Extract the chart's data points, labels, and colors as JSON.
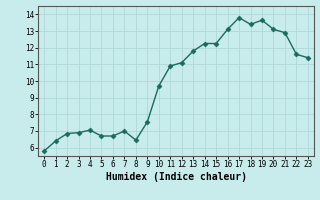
{
  "x": [
    0,
    1,
    2,
    3,
    4,
    5,
    6,
    7,
    8,
    9,
    10,
    11,
    12,
    13,
    14,
    15,
    16,
    17,
    18,
    19,
    20,
    21,
    22,
    23
  ],
  "y": [
    5.8,
    6.4,
    6.85,
    6.9,
    7.05,
    6.7,
    6.7,
    7.0,
    6.45,
    7.55,
    9.7,
    10.9,
    11.1,
    11.8,
    12.25,
    12.25,
    13.1,
    13.8,
    13.4,
    13.65,
    13.1,
    12.9,
    11.6,
    11.4
  ],
  "line_color": "#1a6b5e",
  "marker_color": "#1a6b5e",
  "bg_color": "#c8ecec",
  "grid_color": "#b0d8d8",
  "xlabel": "Humidex (Indice chaleur)",
  "ylim": [
    5.5,
    14.5
  ],
  "xlim": [
    -0.5,
    23.5
  ],
  "yticks": [
    6,
    7,
    8,
    9,
    10,
    11,
    12,
    13,
    14
  ],
  "xticks": [
    0,
    1,
    2,
    3,
    4,
    5,
    6,
    7,
    8,
    9,
    10,
    11,
    12,
    13,
    14,
    15,
    16,
    17,
    18,
    19,
    20,
    21,
    22,
    23
  ],
  "tick_fontsize": 5.5,
  "xlabel_fontsize": 7,
  "linewidth": 1.0,
  "markersize": 2.5
}
